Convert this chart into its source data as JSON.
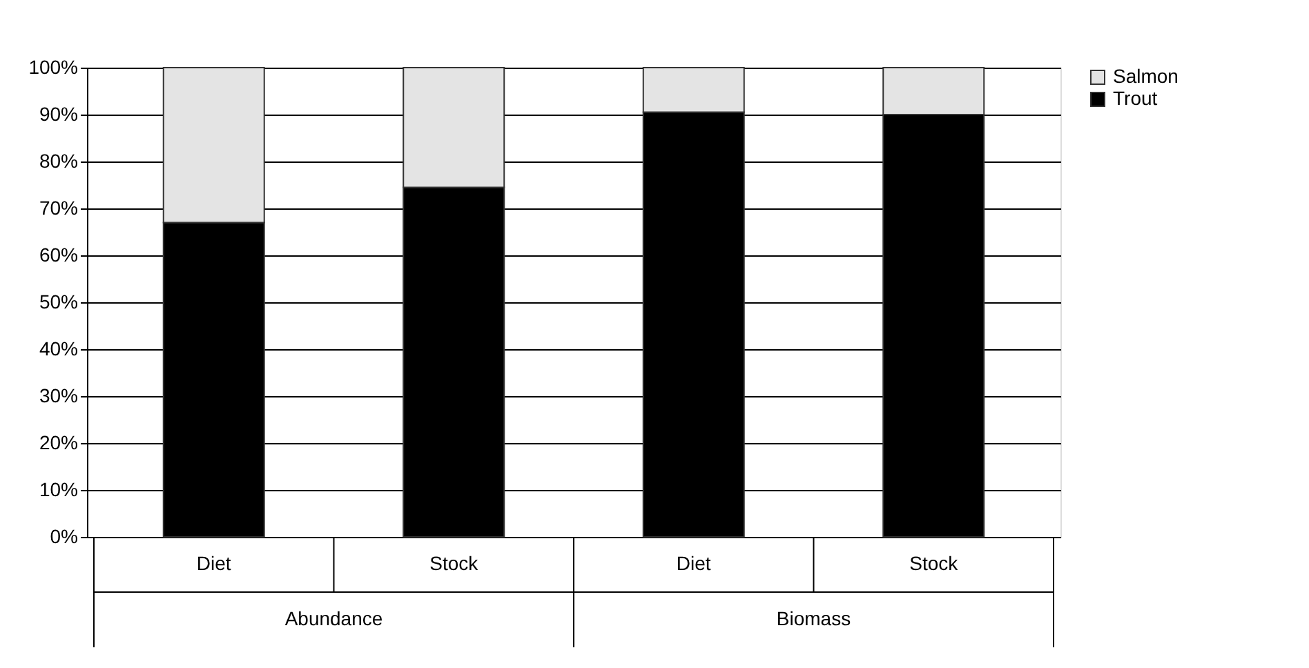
{
  "chart_data": {
    "type": "bar",
    "stacked": true,
    "categories": [
      "Diet",
      "Stock",
      "Diet",
      "Stock"
    ],
    "series": [
      {
        "name": "Trout",
        "color": "#000000",
        "values": [
          67,
          74.5,
          90.5,
          90
        ]
      },
      {
        "name": "Salmon",
        "color": "#e4e4e4",
        "values": [
          33,
          25.5,
          9.5,
          10
        ]
      }
    ],
    "annotations": [
      "Abundance",
      "Biomass"
    ],
    "ylim": [
      0,
      100
    ],
    "yticks": [
      {
        "value": 0,
        "label": "0%"
      },
      {
        "value": 10,
        "label": "10%"
      },
      {
        "value": 20,
        "label": "20%"
      },
      {
        "value": 30,
        "label": "30%"
      },
      {
        "value": 40,
        "label": "40%"
      },
      {
        "value": 50,
        "label": "50%"
      },
      {
        "value": 60,
        "label": "60%"
      },
      {
        "value": 70,
        "label": "70%"
      },
      {
        "value": 80,
        "label": "80%"
      },
      {
        "value": 90,
        "label": "90%"
      },
      {
        "value": 100,
        "label": "100%"
      }
    ],
    "grid": "y",
    "legend": "right"
  }
}
